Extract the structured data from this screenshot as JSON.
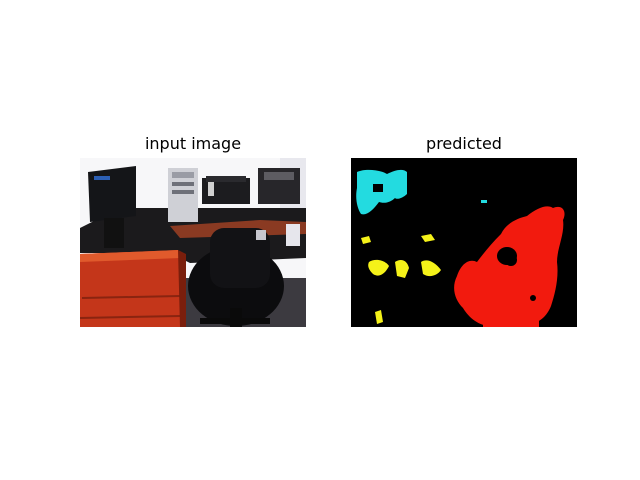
{
  "figure": {
    "panels": [
      {
        "title": "input image",
        "content": "office photo: desk, monitor, PC tower, printer, chair"
      },
      {
        "title": "predicted",
        "content": "segmentation mask"
      }
    ]
  },
  "colors": {
    "background": "#ffffff",
    "mask_background": "#000000",
    "class_cyan": "#23dbe0",
    "class_yellow": "#f5f219",
    "class_red": "#f21a0e"
  }
}
